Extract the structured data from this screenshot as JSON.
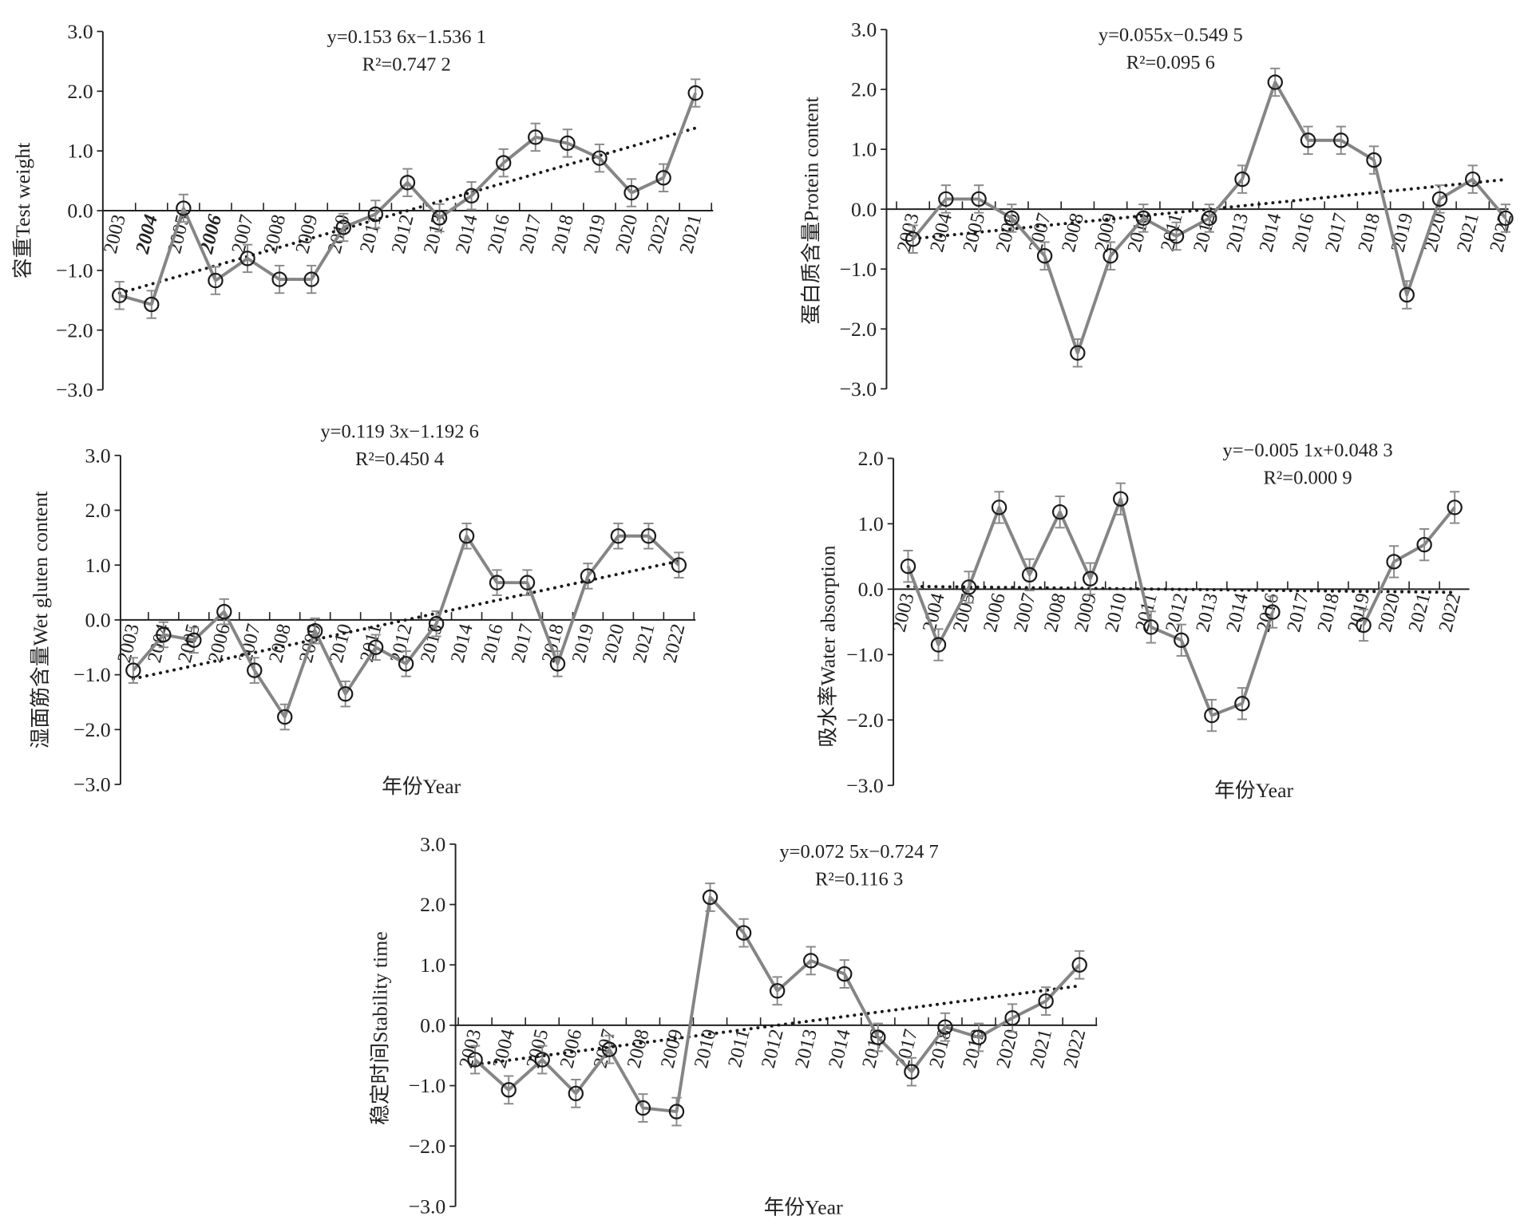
{
  "chart_data": [
    {
      "type": "line",
      "ylabel": "容重Test weight",
      "xlabel": "",
      "equation": "y=0.153 6x−1.536 1",
      "r2_label": "R²=0.747 2",
      "ylim": [
        -3,
        3
      ],
      "yticks": [
        "3.0",
        "2.0",
        "1.0",
        "0.0",
        "−1.0",
        "−2.0",
        "−3.0"
      ],
      "bold_categories": [
        "2004",
        "2006"
      ],
      "categories": [
        "2003",
        "2004",
        "2005",
        "2006",
        "2007",
        "2008",
        "2009",
        "2010",
        "2011",
        "2012",
        "2013",
        "2014",
        "2016",
        "2017",
        "2018",
        "2019",
        "2020",
        "2022",
        "2021"
      ],
      "values": [
        -1.42,
        -1.57,
        0.04,
        -1.17,
        -0.8,
        -1.15,
        -1.15,
        -0.28,
        -0.06,
        0.47,
        -0.12,
        0.25,
        0.8,
        1.23,
        1.13,
        0.88,
        0.3,
        0.55,
        1.97
      ],
      "error": 0.23,
      "trend": {
        "slope": 0.1536,
        "intercept": -1.5361
      }
    },
    {
      "type": "line",
      "ylabel": "蛋白质含量Protein content",
      "xlabel": "",
      "equation": "y=0.055x−0.549 5",
      "r2_label": "R²=0.095 6",
      "ylim": [
        -3,
        3
      ],
      "yticks": [
        "3.0",
        "2.0",
        "1.0",
        "0.0",
        "−1.0",
        "−2.0",
        "−3.0"
      ],
      "bold_categories": [],
      "categories": [
        "2003",
        "2004",
        "2005",
        "2006",
        "2007",
        "2008",
        "2009",
        "2010",
        "2011",
        "2012",
        "2013",
        "2014",
        "2016",
        "2017",
        "2018",
        "2019",
        "2020",
        "2021",
        "2022"
      ],
      "values": [
        -0.5,
        0.17,
        0.17,
        -0.15,
        -0.78,
        -2.4,
        -0.78,
        -0.15,
        -0.45,
        -0.15,
        0.5,
        2.12,
        1.15,
        1.15,
        0.82,
        -1.43,
        0.17,
        0.5,
        -0.15
      ],
      "error": 0.23,
      "trend": {
        "slope": 0.055,
        "intercept": -0.5495
      }
    },
    {
      "type": "line",
      "ylabel": "湿面筋含量Wet gluten content",
      "xlabel": "年份Year",
      "equation": "y=0.119 3x−1.192 6",
      "r2_label": "R²=0.450 4",
      "ylim": [
        -3,
        3
      ],
      "yticks": [
        "3.0",
        "2.0",
        "1.0",
        "0.0",
        "−1.0",
        "−2.0",
        "−3.0"
      ],
      "bold_categories": [],
      "categories": [
        "2003",
        "2004",
        "2005",
        "2006",
        "2007",
        "2008",
        "2009",
        "2010",
        "2011",
        "2012",
        "2013",
        "2014",
        "2016",
        "2017",
        "2018",
        "2019",
        "2020",
        "2021",
        "2022"
      ],
      "values": [
        -0.92,
        -0.27,
        -0.37,
        0.15,
        -0.92,
        -1.77,
        -0.2,
        -1.35,
        -0.5,
        -0.8,
        -0.07,
        1.53,
        0.68,
        0.68,
        -0.8,
        0.8,
        1.53,
        1.53,
        1.0
      ],
      "error": 0.23,
      "trend": {
        "slope": 0.1193,
        "intercept": -1.1926
      }
    },
    {
      "type": "line",
      "ylabel": "吸水率Water absorption",
      "xlabel": "年份Year",
      "equation": "y=−0.005 1x+0.048 3",
      "r2_label": "R²=0.000 9",
      "ylim": [
        -3,
        2
      ],
      "yticks": [
        "2.0",
        "1.0",
        "0.0",
        "−1.0",
        "−2.0",
        "−3.0"
      ],
      "bold_categories": [],
      "categories": [
        "2003",
        "2004",
        "2005",
        "2006",
        "2007",
        "2008",
        "2009",
        "2010",
        "2011",
        "2012",
        "2013",
        "2014",
        "2016",
        "2017",
        "2018",
        "2019",
        "2020",
        "2021",
        "2022"
      ],
      "values": [
        0.35,
        -0.85,
        0.03,
        1.25,
        0.22,
        1.18,
        0.16,
        1.38,
        -0.58,
        -0.78,
        -1.93,
        -1.75,
        -0.35,
        null,
        null,
        -0.55,
        0.42,
        0.68,
        1.25
      ],
      "error": 0.24,
      "trend": {
        "slope": -0.0051,
        "intercept": 0.0483
      }
    },
    {
      "type": "line",
      "ylabel": "稳定时间Stability time",
      "xlabel": "年份Year",
      "equation": "y=0.072 5x−0.724 7",
      "r2_label": "R²=0.116 3",
      "ylim": [
        -3,
        3
      ],
      "yticks": [
        "3.0",
        "2.0",
        "1.0",
        "0.0",
        "−1.0",
        "−2.0",
        "−3.0"
      ],
      "bold_categories": [],
      "categories": [
        "2003",
        "2004",
        "2005",
        "2006",
        "2007",
        "2008",
        "2009",
        "2010",
        "2011",
        "2012",
        "2013",
        "2014",
        "2016",
        "2017",
        "2018",
        "2019",
        "2020",
        "2021",
        "2022"
      ],
      "values": [
        -0.57,
        -1.07,
        -0.57,
        -1.13,
        -0.4,
        -1.37,
        -1.43,
        2.12,
        1.53,
        0.57,
        1.07,
        0.85,
        -0.2,
        -0.77,
        -0.03,
        -0.2,
        0.12,
        0.4,
        1.0
      ],
      "error": 0.23,
      "trend": {
        "slope": 0.0725,
        "intercept": -0.7247
      }
    }
  ],
  "colors": {
    "line": "#858585",
    "marker": "#1a1a1a",
    "axis": "#222222",
    "trend": "#1a1a1a",
    "error": "#8a8a8a"
  }
}
